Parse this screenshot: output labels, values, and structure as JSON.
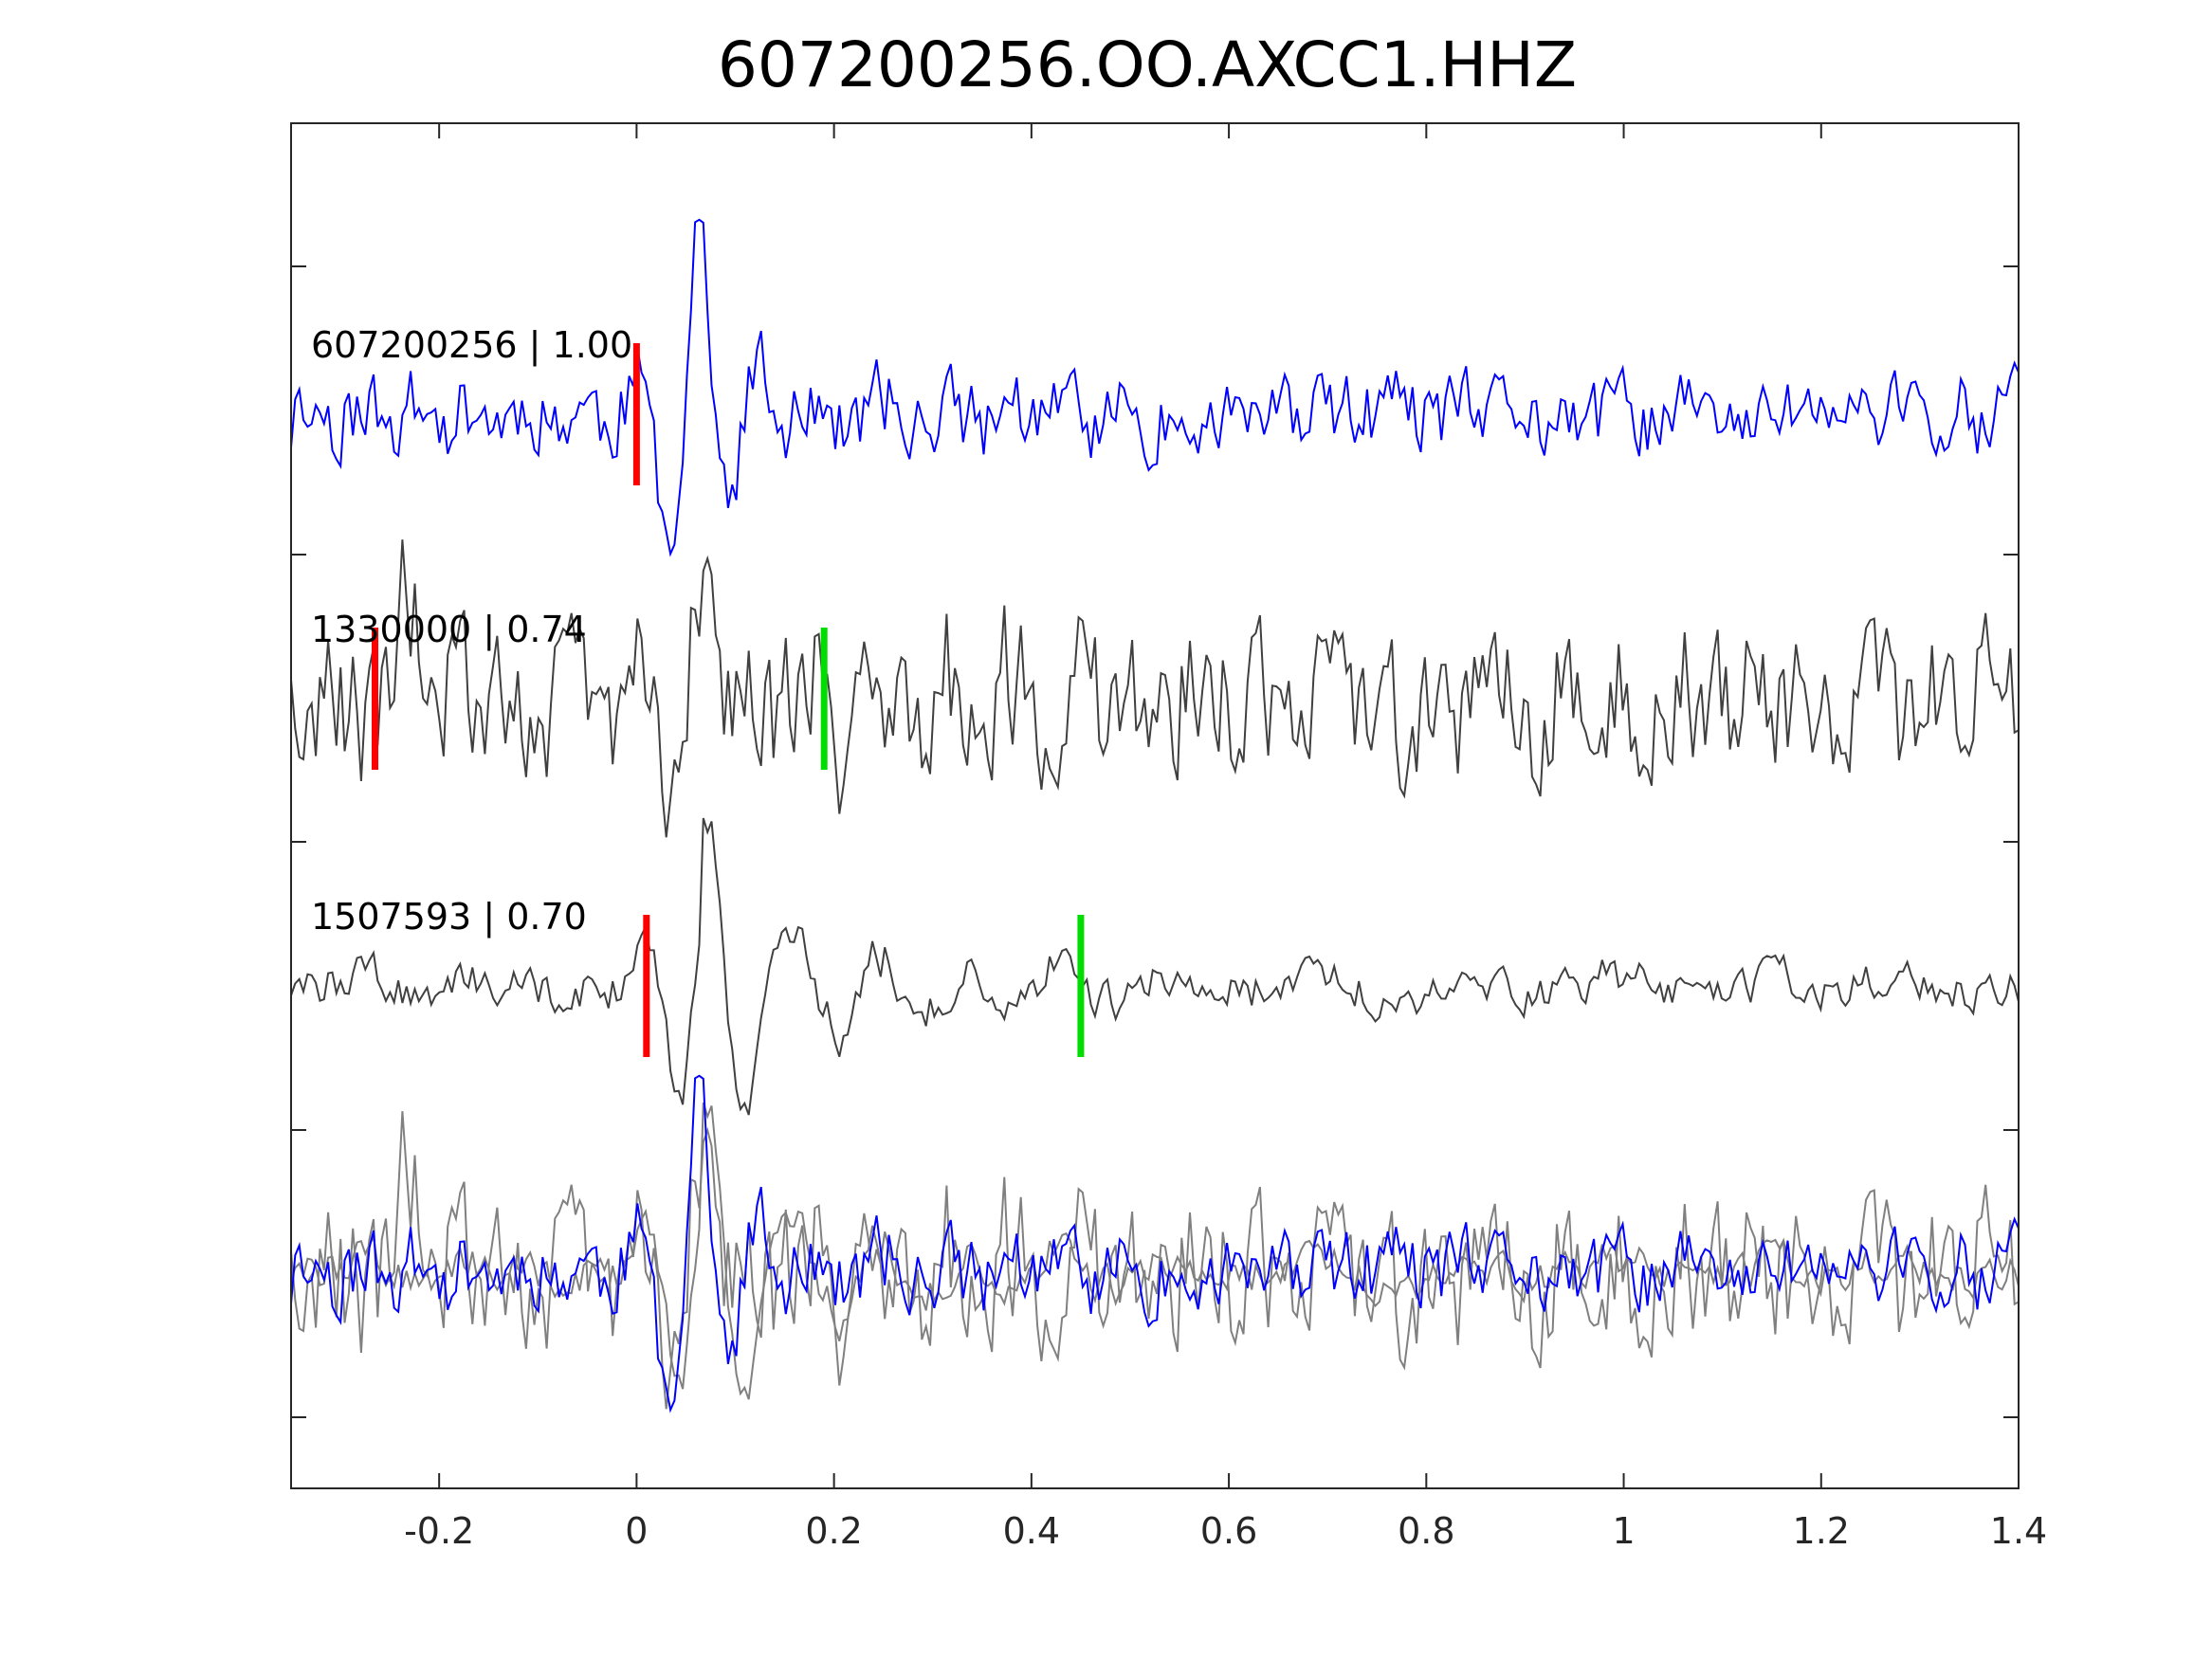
{
  "chart_data": {
    "type": "line",
    "title": "607200256.OO.AXCC1.HHZ",
    "xlabel": "",
    "ylabel": "",
    "xlim": [
      -0.35,
      1.4
    ],
    "xticks": [
      -0.2,
      0,
      0.2,
      0.4,
      0.6,
      0.8,
      1,
      1.2,
      1.4
    ],
    "xtick_labels": [
      "-0.2",
      "0",
      "0.2",
      "0.4",
      "0.6",
      "0.8",
      "1",
      "1.2",
      "1.4"
    ],
    "grid": false,
    "legend": "none",
    "colors": {
      "master": "#0000ff",
      "neighbor": "#404040",
      "overlay_neighbor": "#808080",
      "p_pick": "#ff0000",
      "s_pick": "#00dd00",
      "axes": "#262626"
    },
    "traces": [
      {
        "label": "607200256 | 1.00",
        "event_id": "607200256",
        "correlation": 1.0,
        "color": "#0000ff",
        "p_pick": 0.0,
        "s_pick": null
      },
      {
        "label": "1330000 | 0.74",
        "event_id": "1330000",
        "correlation": 0.74,
        "color": "#404040",
        "p_pick": -0.265,
        "s_pick": 0.19
      },
      {
        "label": "1507593 | 0.70",
        "event_id": "1507593",
        "correlation": 0.7,
        "color": "#404040",
        "p_pick": 0.01,
        "s_pick": 0.45
      }
    ],
    "overlay": {
      "description_series": [
        "607200256",
        "1330000",
        "1507593"
      ]
    }
  }
}
